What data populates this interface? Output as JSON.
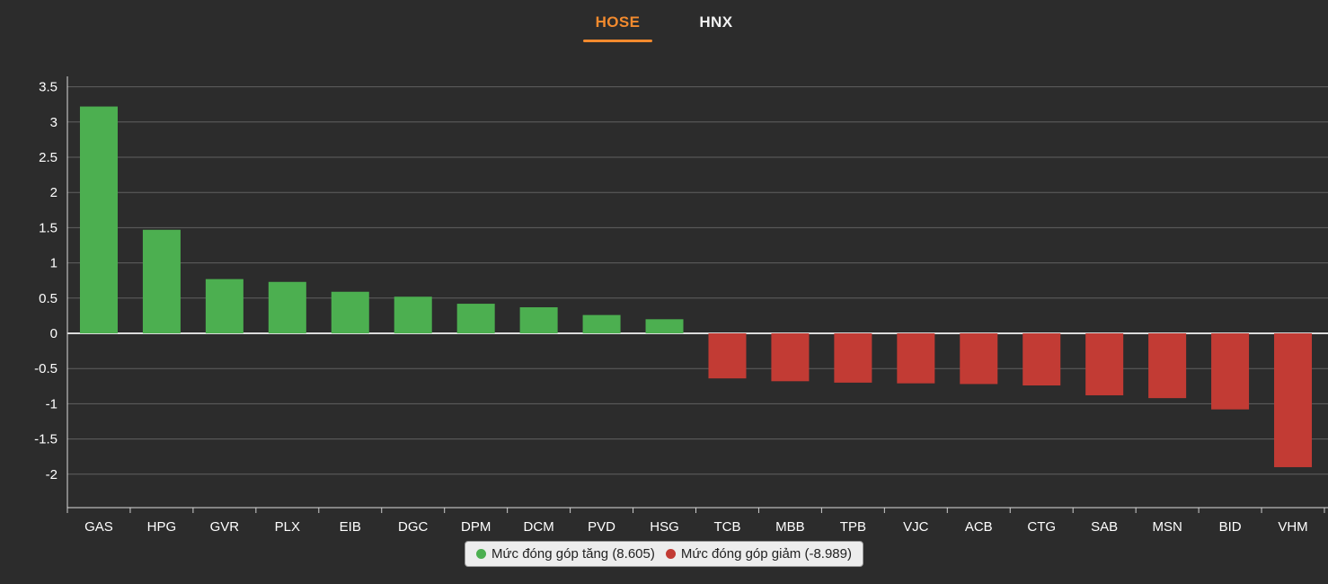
{
  "tabs": [
    {
      "label": "HOSE",
      "active": true
    },
    {
      "label": "HNX",
      "active": false
    }
  ],
  "chart_data": {
    "type": "bar",
    "title": "",
    "xlabel": "",
    "ylabel": "",
    "categories": [
      "GAS",
      "HPG",
      "GVR",
      "PLX",
      "EIB",
      "DGC",
      "DPM",
      "DCM",
      "PVD",
      "HSG",
      "TCB",
      "MBB",
      "TPB",
      "VJC",
      "ACB",
      "CTG",
      "SAB",
      "MSN",
      "BID",
      "VHM"
    ],
    "values": [
      3.22,
      1.47,
      0.77,
      0.73,
      0.59,
      0.52,
      0.42,
      0.37,
      0.26,
      0.2,
      -0.64,
      -0.68,
      -0.7,
      -0.71,
      -0.72,
      -0.74,
      -0.88,
      -0.92,
      -1.08,
      -1.9
    ],
    "yticks": [
      3.5,
      3,
      2.5,
      2,
      1.5,
      1,
      0.5,
      0,
      -0.5,
      -1,
      -1.5,
      -2
    ],
    "ylim": [
      -2.5,
      3.6
    ],
    "grid": true,
    "legend_position": "bottom",
    "colors": {
      "positive": "#4caf50",
      "negative": "#c23b34"
    },
    "legend": [
      {
        "label": "Mức đóng góp tăng (8.605)",
        "color": "#4caf50"
      },
      {
        "label": "Mức đóng góp giảm (-8.989)",
        "color": "#c23b34"
      }
    ]
  }
}
